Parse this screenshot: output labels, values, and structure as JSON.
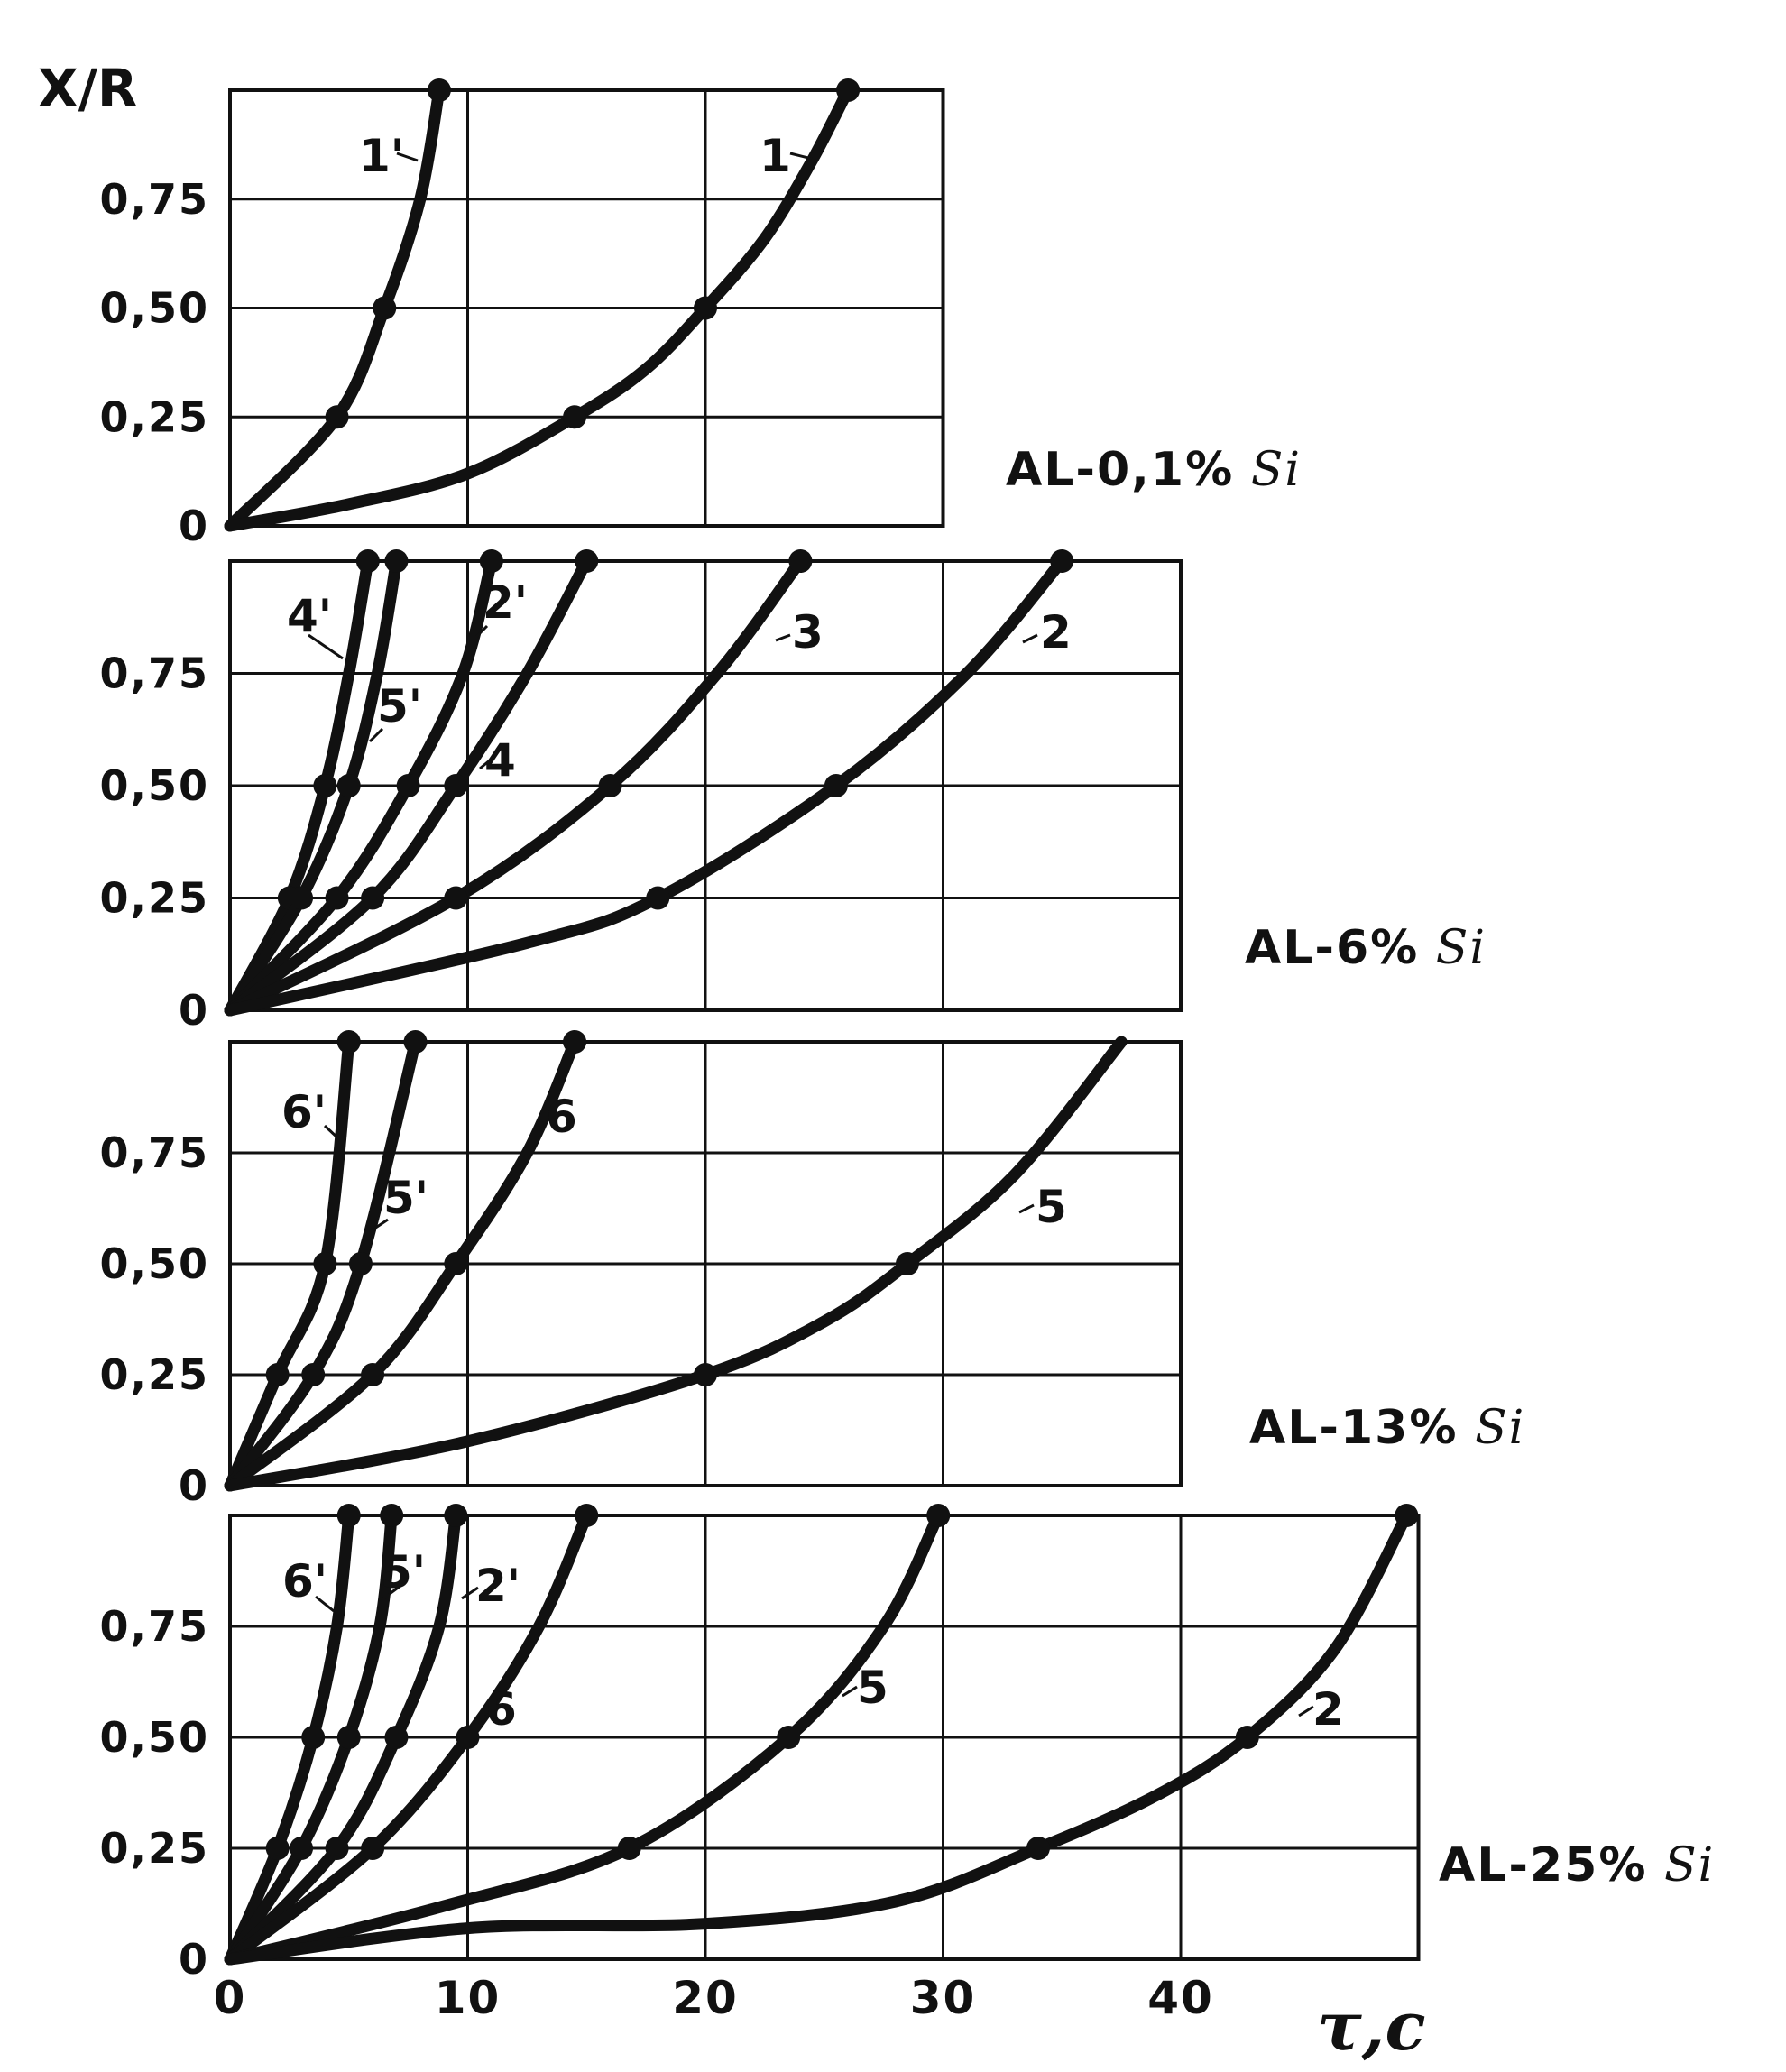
{
  "chart_data": {
    "type": "line",
    "ylabel": "X/R",
    "xlabel": "τ,c",
    "x_ticks": [
      "0",
      "10",
      "20",
      "30",
      "40"
    ],
    "y_ticks": [
      "0",
      "0,25",
      "0,50",
      "0,75"
    ],
    "grid": true,
    "panels": [
      {
        "label_main": "AL-0,1%",
        "label_si": "Si",
        "xlim": [
          0,
          30
        ],
        "ylim": [
          0,
          1
        ],
        "series": [
          {
            "name": "1'",
            "x": [
              0,
              4.5,
              6.5,
              8.0,
              8.8
            ],
            "y": [
              0,
              0.25,
              0.5,
              0.75,
              1.0
            ],
            "markers": [
              1,
              2,
              4
            ]
          },
          {
            "name": "1",
            "x": [
              0,
              5,
              10,
              14.5,
              17.5,
              20.0,
              22.5,
              24.5,
              26.0
            ],
            "y": [
              0,
              0.05,
              0.12,
              0.25,
              0.36,
              0.5,
              0.66,
              0.84,
              1.0
            ],
            "markers": [
              3,
              5,
              8
            ]
          }
        ]
      },
      {
        "label_main": "AL-6%",
        "label_si": "Si",
        "xlim": [
          0,
          40
        ],
        "ylim": [
          0,
          1
        ],
        "series": [
          {
            "name": "4'",
            "x": [
              0,
              2.5,
              4.0,
              5.0,
              5.8
            ],
            "y": [
              0,
              0.25,
              0.5,
              0.75,
              1.0
            ],
            "markers": [
              1,
              2,
              4
            ]
          },
          {
            "name": "5'",
            "x": [
              0,
              3.0,
              5.0,
              6.2,
              7.0
            ],
            "y": [
              0,
              0.25,
              0.5,
              0.75,
              1.0
            ],
            "markers": [
              1,
              2,
              4
            ]
          },
          {
            "name": "2'",
            "x": [
              0,
              4.5,
              7.5,
              9.8,
              11.0
            ],
            "y": [
              0,
              0.25,
              0.5,
              0.75,
              1.0
            ],
            "markers": [
              1,
              2,
              4
            ]
          },
          {
            "name": "4",
            "x": [
              0,
              6.0,
              9.5,
              12.5,
              15.0
            ],
            "y": [
              0,
              0.25,
              0.5,
              0.75,
              1.0
            ],
            "markers": [
              1,
              2,
              4
            ]
          },
          {
            "name": "3",
            "x": [
              0,
              9.5,
              16.0,
              20.5,
              24.0
            ],
            "y": [
              0,
              0.25,
              0.5,
              0.75,
              1.0
            ],
            "markers": [
              1,
              2,
              4
            ]
          },
          {
            "name": "2",
            "x": [
              0,
              12.5,
              18.0,
              25.5,
              31.0,
              35.0
            ],
            "y": [
              0,
              0.15,
              0.25,
              0.5,
              0.75,
              1.0
            ],
            "markers": [
              2,
              3,
              5
            ]
          }
        ]
      },
      {
        "label_main": "AL-13%",
        "label_si": "Si",
        "xlim": [
          0,
          40
        ],
        "ylim": [
          0,
          1
        ],
        "series": [
          {
            "name": "6'",
            "x": [
              0,
              2.0,
              4.0,
              5.0
            ],
            "y": [
              0,
              0.25,
              0.5,
              1.0
            ],
            "markers": [
              1,
              2,
              3
            ]
          },
          {
            "name": "5'",
            "x": [
              0,
              3.5,
              5.5,
              7.8
            ],
            "y": [
              0,
              0.25,
              0.5,
              1.0
            ],
            "markers": [
              1,
              2,
              3
            ]
          },
          {
            "name": "6",
            "x": [
              0,
              6.0,
              9.5,
              12.5,
              14.5
            ],
            "y": [
              0,
              0.25,
              0.5,
              0.75,
              1.0
            ],
            "markers": [
              1,
              2,
              4
            ]
          },
          {
            "name": "5",
            "x": [
              0,
              10,
              20.0,
              25.0,
              28.5,
              33.0,
              37.5
            ],
            "y": [
              0,
              0.1,
              0.25,
              0.37,
              0.5,
              0.7,
              1.0
            ],
            "markers": [
              2,
              4
            ]
          }
        ]
      },
      {
        "label_main": "AL-25%",
        "label_si": "Si",
        "xlim": [
          0,
          50
        ],
        "ylim": [
          0,
          1
        ],
        "series": [
          {
            "name": "6'",
            "x": [
              0,
              2.0,
              3.5,
              4.5,
              5.0
            ],
            "y": [
              0,
              0.25,
              0.5,
              0.75,
              1.0
            ],
            "markers": [
              1,
              2,
              4
            ]
          },
          {
            "name": "5'",
            "x": [
              0,
              3.0,
              5.0,
              6.3,
              6.8
            ],
            "y": [
              0,
              0.25,
              0.5,
              0.75,
              1.0
            ],
            "markers": [
              1,
              2,
              4
            ]
          },
          {
            "name": "2'",
            "x": [
              0,
              4.5,
              7.0,
              8.8,
              9.5
            ],
            "y": [
              0,
              0.25,
              0.5,
              0.75,
              1.0
            ],
            "markers": [
              1,
              2,
              4
            ]
          },
          {
            "name": "6",
            "x": [
              0,
              6.0,
              10.0,
              13.0,
              15.0
            ],
            "y": [
              0,
              0.25,
              0.5,
              0.75,
              1.0
            ],
            "markers": [
              1,
              2,
              4
            ]
          },
          {
            "name": "5",
            "x": [
              0,
              9.0,
              16.8,
              23.5,
              27.5,
              29.8
            ],
            "y": [
              0,
              0.12,
              0.25,
              0.5,
              0.75,
              1.0
            ],
            "markers": [
              2,
              3,
              5
            ]
          },
          {
            "name": "2",
            "x": [
              0,
              10,
              20,
              28,
              34.0,
              39.0,
              42.8,
              46.5,
              49.5
            ],
            "y": [
              0,
              0.07,
              0.08,
              0.13,
              0.25,
              0.37,
              0.5,
              0.7,
              1.0
            ],
            "markers": [
              4,
              6,
              8
            ]
          }
        ]
      }
    ]
  }
}
